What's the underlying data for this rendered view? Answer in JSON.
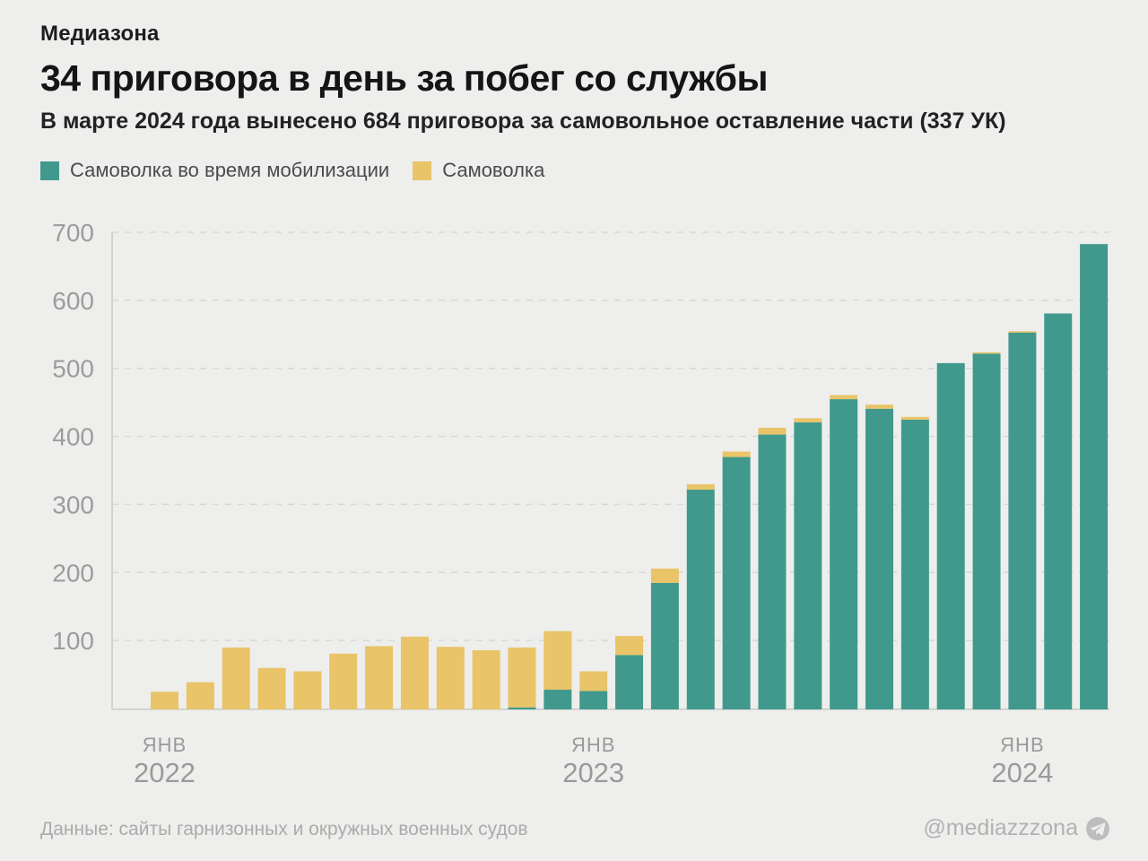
{
  "brand": "Медиазона",
  "title": "34 приговора в день за побег со службы",
  "subtitle": "В марте 2024 года вынесено 684 приговора за самовольное оставление части (337 УК)",
  "legend": [
    {
      "label": "Самоволка во время мобилизации",
      "color": "#40998c"
    },
    {
      "label": "Самоволка",
      "color": "#e9c468"
    }
  ],
  "footer": {
    "source": "Данные: сайты гарнизонных и окружных военных судов",
    "handle": "@mediazzzona",
    "handle_icon": "telegram-icon"
  },
  "colors": {
    "background": "#eeeeec",
    "mobilization_teal": "#40998c",
    "regular_yellow": "#e9c468",
    "grid_line": "#d8d8d6",
    "axis_line": "#c9c9c7",
    "axis_text": "#9c9c9c",
    "footer_text": "#ababab",
    "handle_badge": "#bdbdbd"
  },
  "chart_data": {
    "type": "bar",
    "stacked": true,
    "title": "34 приговора в день за побег со службы",
    "xlabel": "",
    "ylabel": "",
    "ylim": [
      0,
      700
    ],
    "yticks": [
      100,
      200,
      300,
      400,
      500,
      600,
      700
    ],
    "grid": "horizontal dashed",
    "legend_position": "top-left",
    "categories": [
      "янв 2022",
      "фев 2022",
      "мар 2022",
      "апр 2022",
      "май 2022",
      "июн 2022",
      "июл 2022",
      "авг 2022",
      "сен 2022",
      "окт 2022",
      "ноя 2022",
      "дек 2022",
      "янв 2023",
      "фев 2023",
      "мар 2023",
      "апр 2023",
      "май 2023",
      "июн 2023",
      "июл 2023",
      "авг 2023",
      "сен 2023",
      "окт 2023",
      "ноя 2023",
      "дек 2023",
      "янв 2024",
      "фев 2024",
      "мар 2024"
    ],
    "series": [
      {
        "name": "Самоволка во время мобилизации",
        "color": "#40998c",
        "values": [
          0,
          0,
          0,
          0,
          0,
          0,
          0,
          0,
          0,
          0,
          3,
          29,
          27,
          80,
          186,
          323,
          371,
          404,
          422,
          456,
          442,
          426,
          509,
          523,
          554,
          582,
          684
        ]
      },
      {
        "name": "Самоволка",
        "color": "#e9c468",
        "values": [
          26,
          40,
          91,
          61,
          56,
          82,
          93,
          107,
          92,
          87,
          88,
          86,
          29,
          28,
          21,
          8,
          8,
          10,
          6,
          6,
          6,
          4,
          0,
          2,
          2,
          0,
          0
        ]
      }
    ],
    "totals": [
      26,
      40,
      91,
      61,
      56,
      82,
      93,
      107,
      92,
      87,
      91,
      115,
      56,
      108,
      207,
      331,
      379,
      414,
      428,
      462,
      448,
      430,
      509,
      525,
      556,
      582,
      684
    ],
    "xticks": [
      {
        "index": 0,
        "line1": "ЯНВ",
        "line2": "2022"
      },
      {
        "index": 12,
        "line1": "ЯНВ",
        "line2": "2023"
      },
      {
        "index": 24,
        "line1": "ЯНВ",
        "line2": "2024"
      }
    ]
  }
}
